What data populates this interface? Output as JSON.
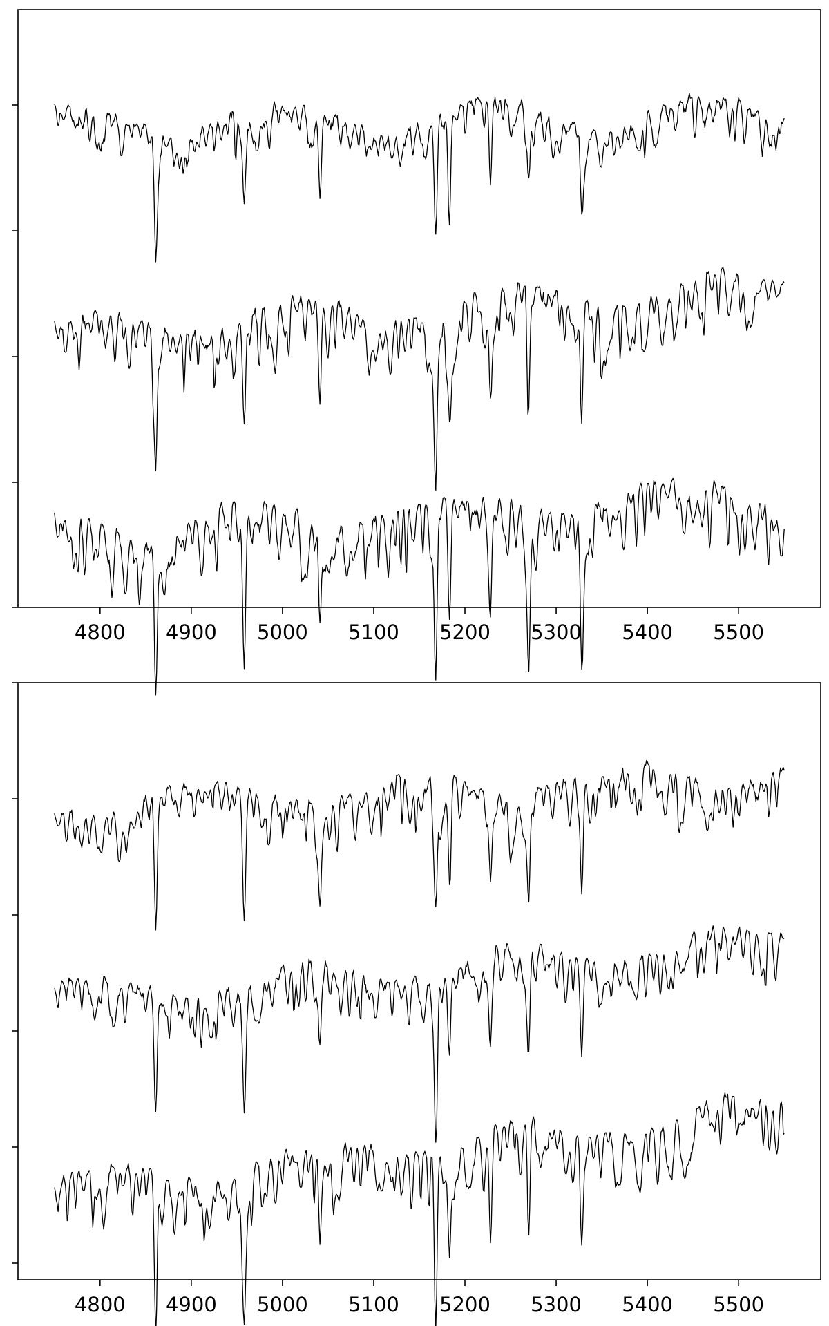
{
  "chart_data": [
    {
      "type": "line",
      "title": "",
      "xlabel": "",
      "ylabel": "",
      "x_range": [
        4750,
        5550
      ],
      "xlim": [
        4710,
        5590
      ],
      "x_ticks": [
        4800,
        4900,
        5000,
        5100,
        5200,
        5300,
        5400,
        5500
      ],
      "y_tick_labels": "none",
      "grid": false,
      "legend": "none",
      "absorption_features": [
        4861,
        4958,
        5041,
        5168,
        5183,
        5228,
        5270,
        5328
      ],
      "series": [
        {
          "offset": 4.0,
          "tilt": 0.1,
          "depth": 0.55,
          "seed": 11
        },
        {
          "offset": 2.3,
          "tilt": 0.38,
          "depth": 0.7,
          "seed": 23
        },
        {
          "offset": 0.7,
          "tilt": 0.3,
          "depth": 0.8,
          "seed": 37
        }
      ]
    },
    {
      "type": "line",
      "title": "",
      "xlabel": "",
      "ylabel": "",
      "x_range": [
        4750,
        5550
      ],
      "xlim": [
        4710,
        5590
      ],
      "x_ticks": [
        4800,
        4900,
        5000,
        5100,
        5200,
        5300,
        5400,
        5500
      ],
      "y_tick_labels": "none",
      "grid": false,
      "legend": "none",
      "absorption_features": [
        4861,
        4958,
        5041,
        5168,
        5183,
        5228,
        5270,
        5328
      ],
      "series": [
        {
          "offset": 4.1,
          "tilt": 0.3,
          "depth": 0.75,
          "seed": 51
        },
        {
          "offset": 2.3,
          "tilt": 0.55,
          "depth": 0.7,
          "seed": 67
        },
        {
          "offset": 0.5,
          "tilt": 0.8,
          "depth": 0.85,
          "seed": 79
        }
      ]
    }
  ]
}
